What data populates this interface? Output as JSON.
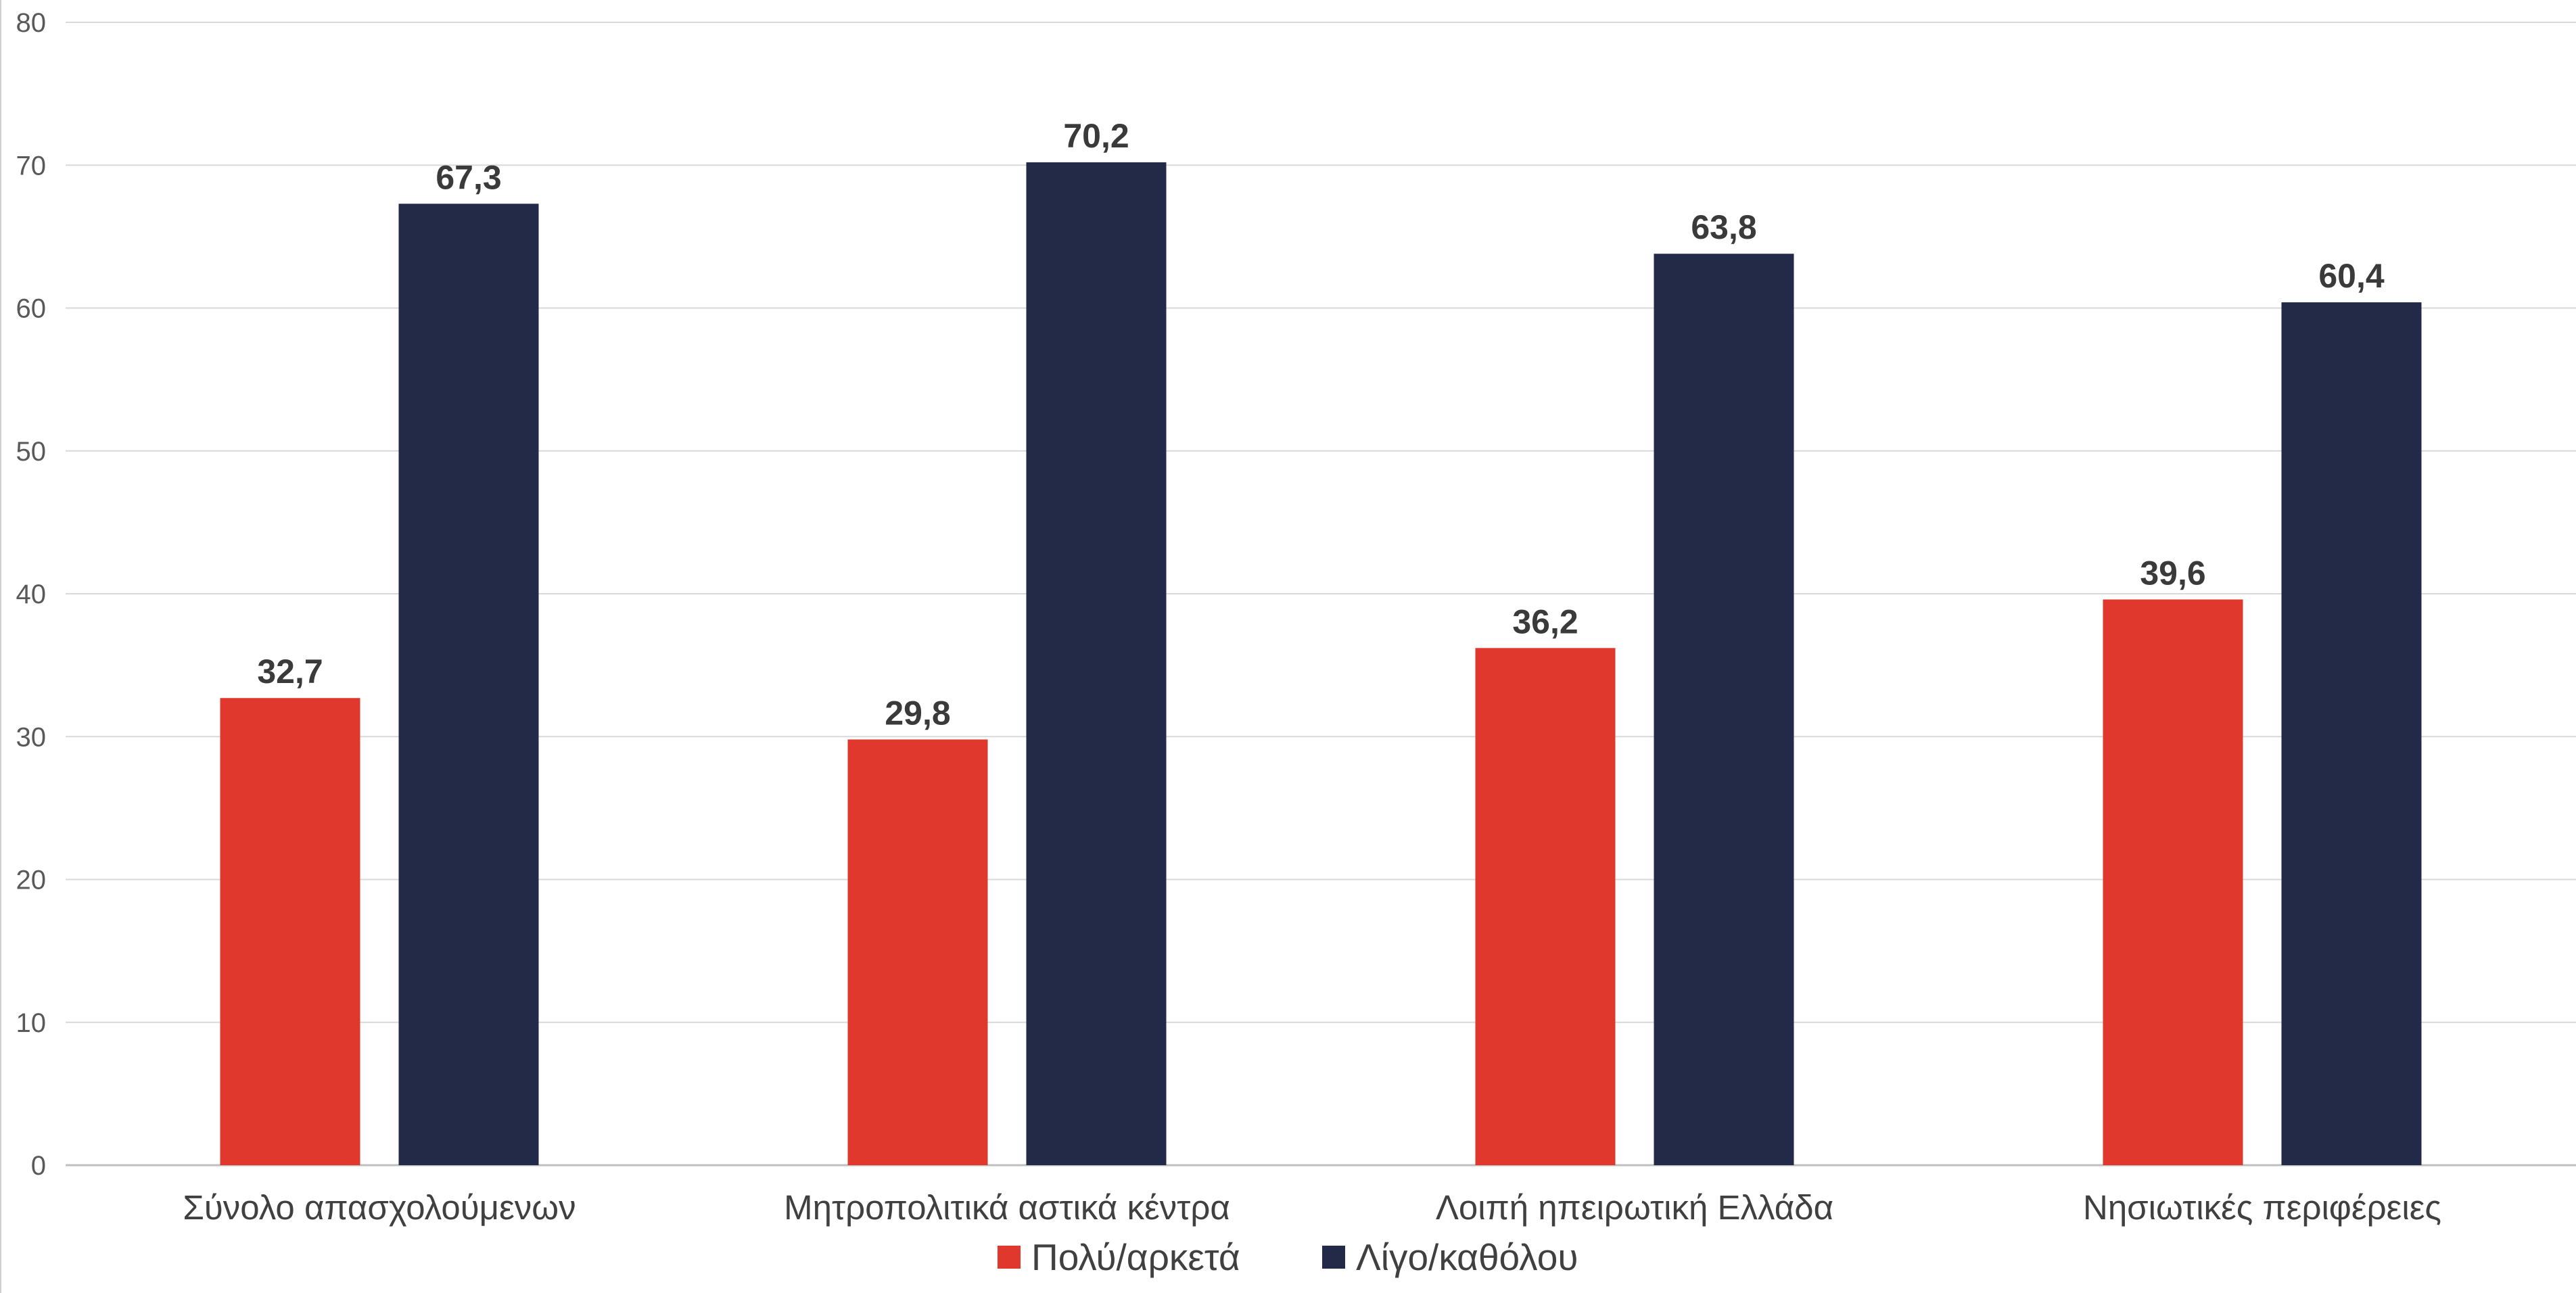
{
  "chart_data": {
    "type": "bar",
    "categories": [
      "Σύνολο απασχολούμενων",
      "Μητροπολιτικά αστικά κέντρα",
      "Λοιπή ηπειρωτική Ελλάδα",
      "Νησιωτικές περιφέρειες"
    ],
    "series": [
      {
        "name": "Πολύ/αρκετά",
        "color": "#E0382D",
        "values": [
          32.7,
          29.8,
          36.2,
          39.6
        ],
        "labels": [
          "32,7",
          "29,8",
          "36,2",
          "39,6"
        ]
      },
      {
        "name": "Λίγο/καθόλου",
        "color": "#222A47",
        "values": [
          67.3,
          70.2,
          63.8,
          60.4
        ],
        "labels": [
          "67,3",
          "70,2",
          "63,8",
          "60,4"
        ]
      }
    ],
    "ylim": [
      0,
      80
    ],
    "yticks": [
      0,
      10,
      20,
      30,
      40,
      50,
      60,
      70,
      80
    ],
    "grid": true,
    "legend_position": "bottom",
    "title": "",
    "xlabel": "",
    "ylabel": ""
  }
}
